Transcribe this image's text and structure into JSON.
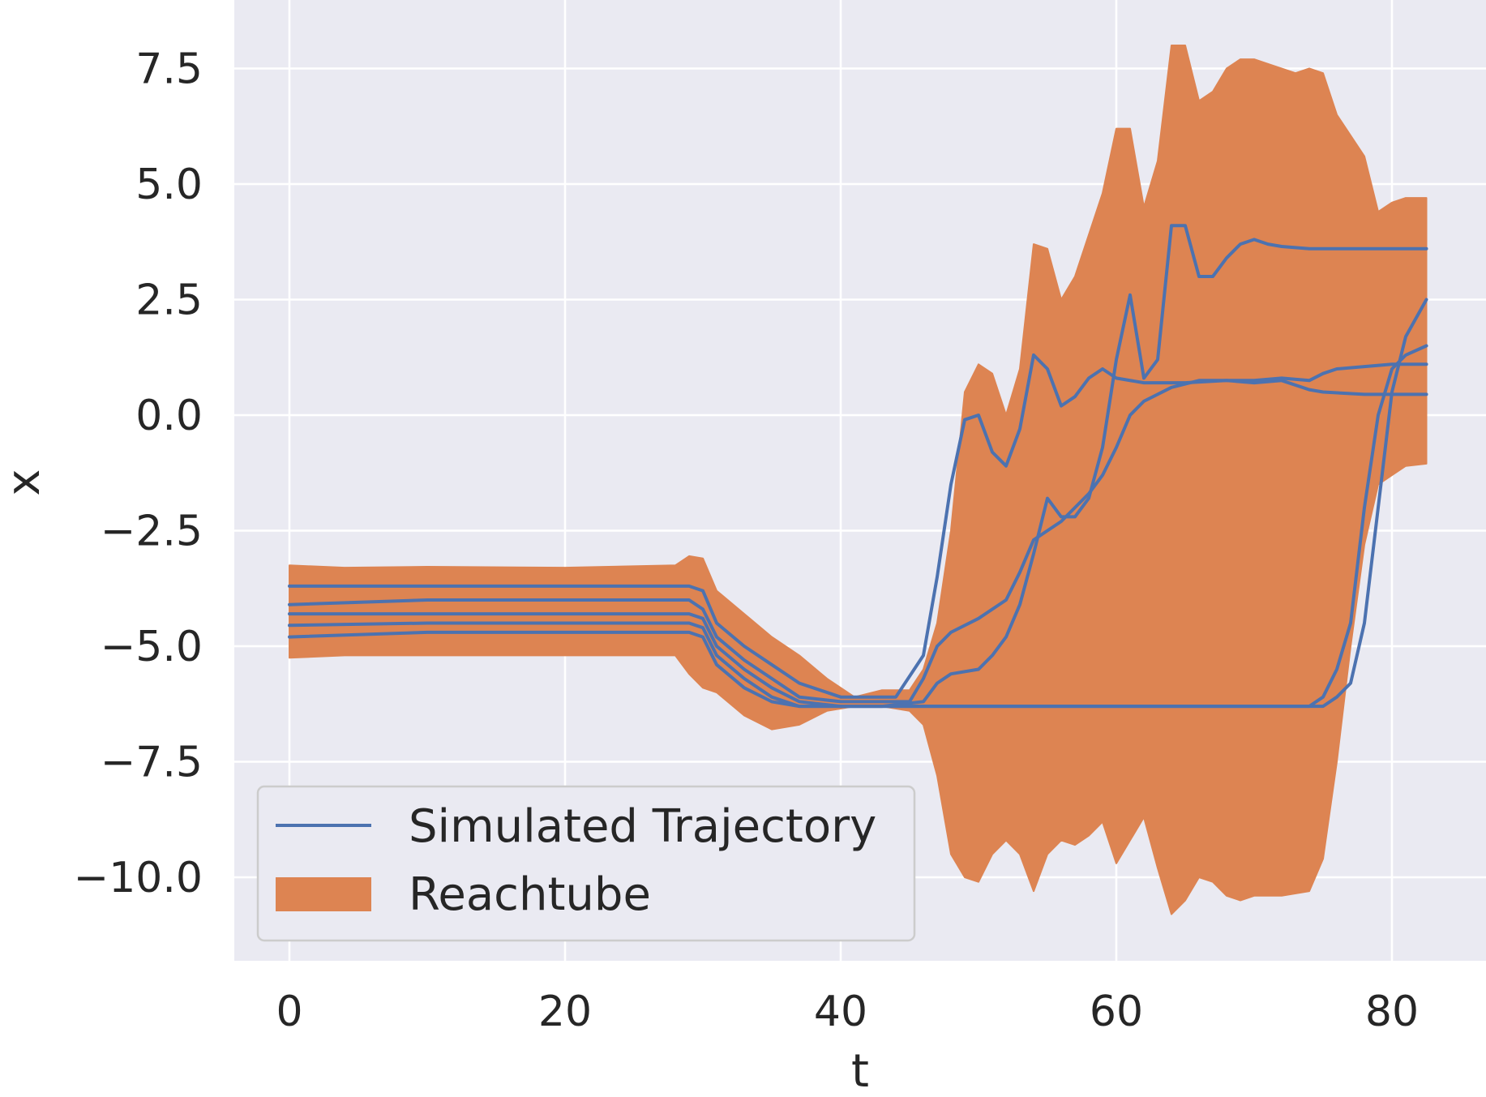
{
  "chart_data": {
    "type": "line",
    "title": "",
    "xlabel": "t",
    "ylabel": "x",
    "xlim": [
      -2,
      84
    ],
    "ylim": [
      -11.5,
      8.8
    ],
    "xticks": [
      0,
      20,
      40,
      60,
      80
    ],
    "xtick_labels": [
      "0",
      "20",
      "40",
      "60",
      "80"
    ],
    "yticks": [
      7.5,
      5.0,
      2.5,
      0.0,
      -2.5,
      -5.0,
      -7.5,
      -10.0
    ],
    "ytick_labels": [
      "7.5",
      "5.0",
      "2.5",
      "0.0",
      "−2.5",
      "−5.0",
      "−7.5",
      "−10.0"
    ],
    "grid": true,
    "legend_position": "lower-left",
    "legend": [
      {
        "label": "Simulated Trajectory",
        "kind": "line"
      },
      {
        "label": "Reachtube",
        "kind": "fill"
      }
    ],
    "colors": {
      "background": "#EAEAF2",
      "grid": "#FFFFFF",
      "trajectory": "#4C72B0",
      "reachtube": "#DD8452"
    },
    "reachtube": {
      "name": "Reachtube",
      "upper": [
        [
          0,
          -3.25
        ],
        [
          4,
          -3.3
        ],
        [
          10,
          -3.28
        ],
        [
          20,
          -3.3
        ],
        [
          28,
          -3.25
        ],
        [
          29,
          -3.05
        ],
        [
          30,
          -3.1
        ],
        [
          31,
          -3.8
        ],
        [
          33,
          -4.3
        ],
        [
          35,
          -4.8
        ],
        [
          37,
          -5.2
        ],
        [
          39,
          -5.7
        ],
        [
          41,
          -6.1
        ],
        [
          43,
          -5.95
        ],
        [
          45,
          -5.95
        ],
        [
          46,
          -5.5
        ],
        [
          47,
          -4.5
        ],
        [
          48,
          -2.5
        ],
        [
          49,
          0.5
        ],
        [
          50,
          1.1
        ],
        [
          51,
          0.9
        ],
        [
          52,
          0.0
        ],
        [
          53,
          1.0
        ],
        [
          54,
          3.7
        ],
        [
          55,
          3.6
        ],
        [
          56,
          2.5
        ],
        [
          57,
          3.0
        ],
        [
          58,
          3.9
        ],
        [
          59,
          4.8
        ],
        [
          60,
          6.2
        ],
        [
          61,
          6.2
        ],
        [
          62,
          4.5
        ],
        [
          63,
          5.5
        ],
        [
          64,
          8.0
        ],
        [
          65,
          8.0
        ],
        [
          66,
          6.8
        ],
        [
          67,
          7.0
        ],
        [
          68,
          7.5
        ],
        [
          69,
          7.7
        ],
        [
          70,
          7.7
        ],
        [
          71,
          7.6
        ],
        [
          73,
          7.4
        ],
        [
          74,
          7.5
        ],
        [
          75,
          7.4
        ],
        [
          76,
          6.5
        ],
        [
          78,
          5.6
        ],
        [
          79,
          4.4
        ],
        [
          80,
          4.6
        ],
        [
          81,
          4.7
        ],
        [
          82.5,
          4.7
        ]
      ],
      "lower": [
        [
          0,
          -5.25
        ],
        [
          4,
          -5.2
        ],
        [
          10,
          -5.2
        ],
        [
          20,
          -5.2
        ],
        [
          28,
          -5.2
        ],
        [
          29,
          -5.6
        ],
        [
          30,
          -5.9
        ],
        [
          31,
          -6.0
        ],
        [
          33,
          -6.5
        ],
        [
          35,
          -6.8
        ],
        [
          37,
          -6.7
        ],
        [
          39,
          -6.4
        ],
        [
          41,
          -6.3
        ],
        [
          43,
          -6.3
        ],
        [
          45,
          -6.4
        ],
        [
          46,
          -6.7
        ],
        [
          47,
          -7.8
        ],
        [
          48,
          -9.5
        ],
        [
          49,
          -10.0
        ],
        [
          50,
          -10.1
        ],
        [
          51,
          -9.5
        ],
        [
          52,
          -9.2
        ],
        [
          53,
          -9.5
        ],
        [
          54,
          -10.3
        ],
        [
          55,
          -9.5
        ],
        [
          56,
          -9.2
        ],
        [
          57,
          -9.3
        ],
        [
          58,
          -9.1
        ],
        [
          59,
          -8.8
        ],
        [
          60,
          -9.7
        ],
        [
          61,
          -9.2
        ],
        [
          62,
          -8.7
        ],
        [
          63,
          -9.8
        ],
        [
          64,
          -10.8
        ],
        [
          65,
          -10.5
        ],
        [
          66,
          -10.0
        ],
        [
          67,
          -10.1
        ],
        [
          68,
          -10.4
        ],
        [
          69,
          -10.5
        ],
        [
          70,
          -10.4
        ],
        [
          72,
          -10.4
        ],
        [
          74,
          -10.3
        ],
        [
          75,
          -9.6
        ],
        [
          76,
          -7.5
        ],
        [
          77,
          -5.0
        ],
        [
          78,
          -2.8
        ],
        [
          79,
          -1.5
        ],
        [
          80,
          -1.3
        ],
        [
          81,
          -1.1
        ],
        [
          82.5,
          -1.05
        ]
      ]
    },
    "series": [
      {
        "name": "Simulated Trajectory",
        "points": [
          [
            0,
            -3.7
          ],
          [
            10,
            -3.7
          ],
          [
            20,
            -3.7
          ],
          [
            29,
            -3.7
          ],
          [
            30,
            -3.8
          ],
          [
            31,
            -4.5
          ],
          [
            33,
            -5.0
          ],
          [
            35,
            -5.4
          ],
          [
            37,
            -5.8
          ],
          [
            40,
            -6.1
          ],
          [
            42,
            -6.1
          ],
          [
            44,
            -6.1
          ],
          [
            46,
            -5.2
          ],
          [
            47,
            -3.5
          ],
          [
            48,
            -1.5
          ],
          [
            49,
            -0.1
          ],
          [
            50,
            0.0
          ],
          [
            51,
            -0.8
          ],
          [
            52,
            -1.1
          ],
          [
            53,
            -0.3
          ],
          [
            54,
            1.3
          ],
          [
            55,
            1.0
          ],
          [
            56,
            0.2
          ],
          [
            57,
            0.4
          ],
          [
            58,
            0.8
          ],
          [
            59,
            1.0
          ],
          [
            60,
            0.8
          ],
          [
            62,
            0.7
          ],
          [
            65,
            0.7
          ],
          [
            68,
            0.75
          ],
          [
            70,
            0.75
          ],
          [
            72,
            0.8
          ],
          [
            74,
            0.75
          ],
          [
            75,
            0.9
          ],
          [
            76,
            1.0
          ],
          [
            78,
            1.05
          ],
          [
            80,
            1.1
          ],
          [
            82.5,
            1.1
          ]
        ]
      },
      {
        "name": "Simulated Trajectory",
        "points": [
          [
            0,
            -4.1
          ],
          [
            10,
            -4.0
          ],
          [
            20,
            -4.0
          ],
          [
            29,
            -4.0
          ],
          [
            30,
            -4.2
          ],
          [
            31,
            -4.8
          ],
          [
            33,
            -5.3
          ],
          [
            35,
            -5.7
          ],
          [
            37,
            -6.1
          ],
          [
            40,
            -6.2
          ],
          [
            42,
            -6.2
          ],
          [
            45,
            -6.2
          ],
          [
            46,
            -5.7
          ],
          [
            47,
            -5.0
          ],
          [
            48,
            -4.7
          ],
          [
            50,
            -4.4
          ],
          [
            52,
            -4.0
          ],
          [
            53,
            -3.4
          ],
          [
            54,
            -2.7
          ],
          [
            55,
            -2.5
          ],
          [
            56,
            -2.3
          ],
          [
            57,
            -2.0
          ],
          [
            58,
            -1.7
          ],
          [
            59,
            -1.3
          ],
          [
            60,
            -0.7
          ],
          [
            61,
            0.0
          ],
          [
            62,
            0.3
          ],
          [
            64,
            0.6
          ],
          [
            66,
            0.75
          ],
          [
            68,
            0.75
          ],
          [
            70,
            0.7
          ],
          [
            72,
            0.75
          ],
          [
            74,
            0.55
          ],
          [
            75,
            0.5
          ],
          [
            78,
            0.45
          ],
          [
            80,
            0.45
          ],
          [
            82.5,
            0.45
          ]
        ]
      },
      {
        "name": "Simulated Trajectory",
        "points": [
          [
            0,
            -4.3
          ],
          [
            10,
            -4.3
          ],
          [
            20,
            -4.3
          ],
          [
            29,
            -4.3
          ],
          [
            30,
            -4.4
          ],
          [
            31,
            -5.0
          ],
          [
            33,
            -5.5
          ],
          [
            35,
            -5.9
          ],
          [
            37,
            -6.2
          ],
          [
            40,
            -6.3
          ],
          [
            43,
            -6.3
          ],
          [
            46,
            -6.2
          ],
          [
            47,
            -5.8
          ],
          [
            48,
            -5.6
          ],
          [
            50,
            -5.5
          ],
          [
            51,
            -5.2
          ],
          [
            52,
            -4.8
          ],
          [
            53,
            -4.1
          ],
          [
            54,
            -3.0
          ],
          [
            55,
            -1.8
          ],
          [
            56,
            -2.2
          ],
          [
            57,
            -2.2
          ],
          [
            58,
            -1.8
          ],
          [
            59,
            -0.7
          ],
          [
            60,
            1.2
          ],
          [
            61,
            2.6
          ],
          [
            62,
            0.8
          ],
          [
            63,
            1.2
          ],
          [
            64,
            4.1
          ],
          [
            65,
            4.1
          ],
          [
            66,
            3.0
          ],
          [
            67,
            3.0
          ],
          [
            68,
            3.4
          ],
          [
            69,
            3.7
          ],
          [
            70,
            3.8
          ],
          [
            71,
            3.7
          ],
          [
            72,
            3.65
          ],
          [
            74,
            3.6
          ],
          [
            76,
            3.6
          ],
          [
            78,
            3.6
          ],
          [
            80,
            3.6
          ],
          [
            82.5,
            3.6
          ]
        ]
      },
      {
        "name": "Simulated Trajectory",
        "points": [
          [
            0,
            -4.55
          ],
          [
            10,
            -4.5
          ],
          [
            20,
            -4.5
          ],
          [
            29,
            -4.5
          ],
          [
            30,
            -4.6
          ],
          [
            31,
            -5.2
          ],
          [
            33,
            -5.7
          ],
          [
            35,
            -6.1
          ],
          [
            37,
            -6.3
          ],
          [
            40,
            -6.3
          ],
          [
            45,
            -6.3
          ],
          [
            50,
            -6.3
          ],
          [
            55,
            -6.3
          ],
          [
            60,
            -6.3
          ],
          [
            65,
            -6.3
          ],
          [
            70,
            -6.3
          ],
          [
            74,
            -6.3
          ],
          [
            75,
            -6.1
          ],
          [
            76,
            -5.5
          ],
          [
            77,
            -4.5
          ],
          [
            78,
            -2.0
          ],
          [
            79,
            0.0
          ],
          [
            80,
            1.0
          ],
          [
            81,
            1.3
          ],
          [
            82.5,
            1.5
          ]
        ]
      },
      {
        "name": "Simulated Trajectory",
        "points": [
          [
            0,
            -4.8
          ],
          [
            10,
            -4.7
          ],
          [
            20,
            -4.7
          ],
          [
            29,
            -4.7
          ],
          [
            30,
            -4.8
          ],
          [
            31,
            -5.4
          ],
          [
            33,
            -5.9
          ],
          [
            35,
            -6.2
          ],
          [
            37,
            -6.3
          ],
          [
            40,
            -6.3
          ],
          [
            45,
            -6.3
          ],
          [
            50,
            -6.3
          ],
          [
            55,
            -6.3
          ],
          [
            60,
            -6.3
          ],
          [
            65,
            -6.3
          ],
          [
            70,
            -6.3
          ],
          [
            75,
            -6.3
          ],
          [
            76,
            -6.1
          ],
          [
            77,
            -5.8
          ],
          [
            78,
            -4.5
          ],
          [
            79,
            -2.0
          ],
          [
            80,
            0.5
          ],
          [
            81,
            1.7
          ],
          [
            82.5,
            2.5
          ]
        ]
      }
    ]
  }
}
